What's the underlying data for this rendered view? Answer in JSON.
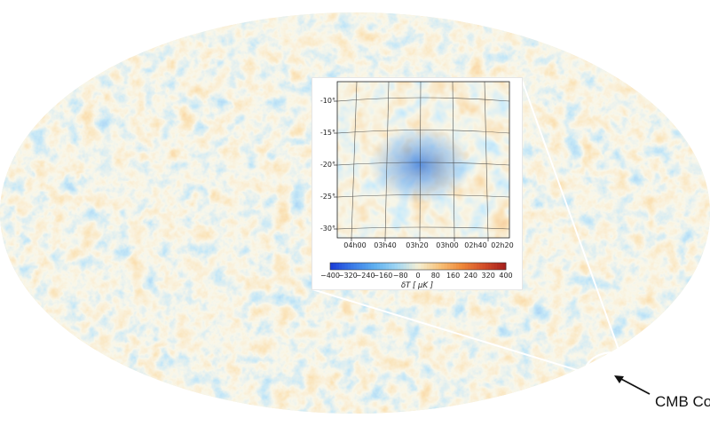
{
  "callout": {
    "label": "CMB Cold"
  },
  "inset": {
    "dec_ticks": [
      "-10°",
      "-15°",
      "-20°",
      "-25°",
      "-30°"
    ],
    "ra_ticks": [
      "04h00",
      "03h40",
      "03h20",
      "03h00",
      "02h40",
      "02h20"
    ]
  },
  "colorbar": {
    "ticks": [
      "−400",
      "−320",
      "−240",
      "−160",
      "−80",
      "0",
      "80",
      "160",
      "240",
      "320",
      "400"
    ],
    "label": "δT [ μK ]",
    "range": [
      -400,
      400
    ],
    "colors": [
      "#1c3fd8",
      "#3c7de8",
      "#5fb0f0",
      "#9fd6f4",
      "#f4efd4",
      "#f7c27a",
      "#ef8a3a",
      "#d4502a",
      "#a8201c"
    ]
  },
  "map": {
    "projection": "mollweide",
    "colors": {
      "cold": "#3f92e0",
      "cool": "#8cc8ec",
      "neutral": "#f3ead0",
      "warm": "#f2a253",
      "hot": "#d8602e"
    }
  }
}
